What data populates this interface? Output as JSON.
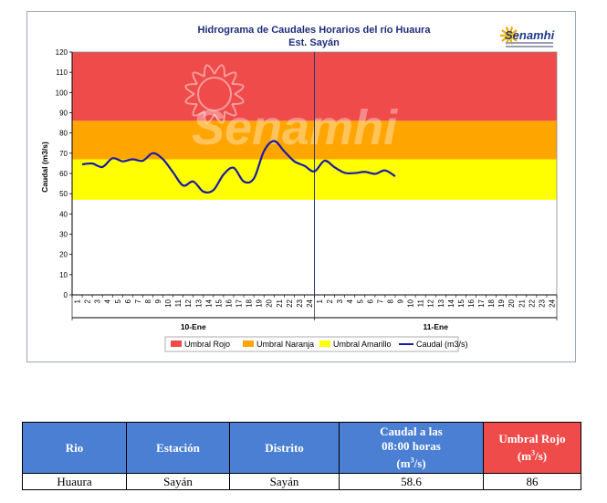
{
  "chart_data": {
    "type": "line",
    "title": "Hidrograma de Caudales Horarios del río Huaura",
    "subtitle": "Est. Sayán",
    "ylabel": "Caudal  (m3/s)",
    "ylim": [
      0,
      120
    ],
    "yticks": [
      0,
      10,
      20,
      30,
      40,
      50,
      60,
      70,
      80,
      90,
      100,
      110,
      120
    ],
    "x_hours": [
      "1",
      "2",
      "3",
      "4",
      "5",
      "6",
      "7",
      "8",
      "9",
      "10",
      "11",
      "12",
      "13",
      "14",
      "15",
      "16",
      "17",
      "18",
      "19",
      "20",
      "21",
      "22",
      "23",
      "24",
      "1",
      "2",
      "3",
      "4",
      "5",
      "6",
      "7",
      "8",
      "9",
      "10",
      "11",
      "12",
      "13",
      "14",
      "15",
      "16",
      "17",
      "18",
      "19",
      "20",
      "21",
      "22",
      "23",
      "24"
    ],
    "day_groups": [
      "10-Ene",
      "11-Ene"
    ],
    "bands": [
      {
        "name": "Umbral Rojo",
        "from": 86,
        "to": 120,
        "color": "#f04b4b"
      },
      {
        "name": "Umbral Naranja",
        "from": 67,
        "to": 86,
        "color": "#ffa500"
      },
      {
        "name": "Umbral Amarillo",
        "from": 47,
        "to": 67,
        "color": "#ffff00"
      }
    ],
    "series": [
      {
        "name": "Caudal (m3/s)",
        "color": "#1a1aa6",
        "values": [
          64.5,
          64.9,
          63.2,
          67.5,
          66.0,
          67.0,
          66.3,
          70.0,
          67.0,
          60.5,
          54.0,
          56.0,
          51.0,
          51.8,
          59.5,
          62.8,
          56.0,
          57.5,
          71.0,
          76.0,
          71.0,
          66.0,
          63.8,
          61.0,
          66.3,
          63.0,
          60.3,
          60.2,
          60.8,
          59.8,
          61.5,
          58.6,
          null,
          null,
          null,
          null,
          null,
          null,
          null,
          null,
          null,
          null,
          null,
          null,
          null,
          null,
          null,
          null
        ]
      }
    ],
    "legend_position": "bottom",
    "grid": false
  },
  "logo": {
    "text": "Senamhi",
    "watermark": "Senamhi"
  },
  "table": {
    "headers": [
      "Rio",
      "Estación",
      "Distrito",
      "Caudal a las 08:00 horas (m3/s)",
      "Umbral Rojo (m3/s)"
    ],
    "header_caudal_line1": "Caudal a las",
    "header_caudal_line2": "08:00 horas",
    "header_umbral_line1": "Umbral Rojo",
    "units_prefix": "(m",
    "units_sup": "3",
    "units_suffix": "/s)",
    "row": [
      "Huaura",
      "Sayán",
      "Sayán",
      "58.6",
      "86"
    ]
  }
}
